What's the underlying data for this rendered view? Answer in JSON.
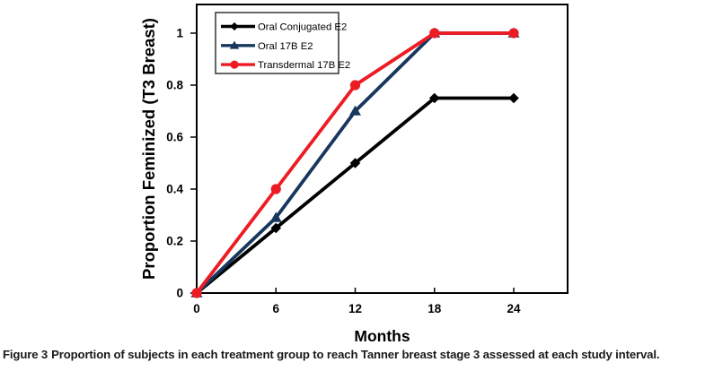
{
  "figure": {
    "caption_label": "Figure 3",
    "caption_text": "Proportion of subjects in each treatment group to reach Tanner breast stage 3 assessed at each study interval."
  },
  "chart_data": {
    "type": "line",
    "title": "",
    "xlabel": "Months",
    "ylabel": "Proportion Feminized (T3 Breast)",
    "x": [
      0,
      6,
      12,
      18,
      24
    ],
    "xtick_labels": [
      "0",
      "6",
      "12",
      "18",
      "24"
    ],
    "ytick_values": [
      0,
      0.2,
      0.4,
      0.6,
      0.8,
      1
    ],
    "ytick_labels": [
      "0",
      "0.2",
      "0.4",
      "0.6",
      "0.8",
      "1"
    ],
    "xlim": [
      0,
      28
    ],
    "ylim": [
      0,
      1.11
    ],
    "grid": false,
    "legend_position": "top-left-inside",
    "series": [
      {
        "name": "Oral Conjugated E2",
        "marker": "diamond",
        "color": "#000000",
        "values": [
          0,
          0.25,
          0.5,
          0.75,
          0.75
        ]
      },
      {
        "name": "Oral 17B E2",
        "marker": "triangle",
        "color": "#17375E",
        "values": [
          0,
          0.29,
          0.7,
          1.0,
          1.0
        ]
      },
      {
        "name": "Transdermal 17B E2",
        "marker": "circle",
        "color": "#ED1C24",
        "values": [
          0,
          0.4,
          0.8,
          1.0,
          1.0
        ]
      }
    ]
  },
  "colors": {
    "axis": "#000000",
    "legend_border": "#3F3F3F",
    "background": "#FFFFFF",
    "caption_text": "#1A1A1A"
  }
}
